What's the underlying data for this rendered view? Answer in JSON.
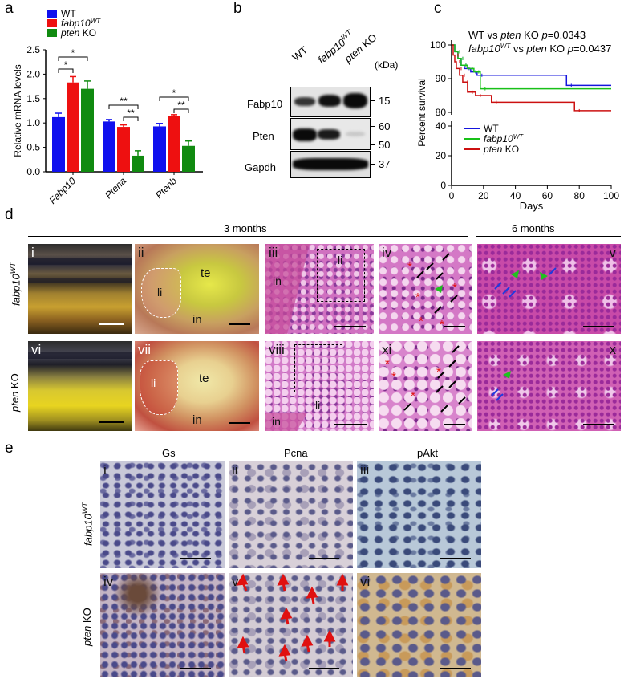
{
  "panel_letters": {
    "a": "a",
    "b": "b",
    "c": "c",
    "d": "d",
    "e": "e"
  },
  "chart_data": [
    {
      "type": "bar",
      "ylabel": "Relative mRNA levels",
      "ylim": [
        0,
        2.5
      ],
      "yticks": [
        "0.0",
        "0.5",
        "1.0",
        "1.5",
        "2.0",
        "2.5"
      ],
      "categories": [
        "Fabp10",
        "Ptena",
        "Ptenb"
      ],
      "series": [
        {
          "name": "WT",
          "color": "#1010ee",
          "values": [
            1.12,
            1.03,
            0.93
          ],
          "errors": [
            0.08,
            0.04,
            0.06
          ]
        },
        {
          "name": "fabp10",
          "name_sup": "WT",
          "color": "#ee1010",
          "values": [
            1.83,
            0.92,
            1.14
          ],
          "errors": [
            0.12,
            0.04,
            0.03
          ]
        },
        {
          "name": "pten KO",
          "color": "#108a10",
          "values": [
            1.7,
            0.33,
            0.53
          ],
          "errors": [
            0.16,
            0.1,
            0.1
          ]
        }
      ],
      "significance": [
        "*",
        "*",
        "**",
        "**",
        "*",
        "**"
      ]
    },
    {
      "type": "line",
      "title_line1": "WT vs pten KO p=0.0343",
      "title_line2": "fabp10WT vs pten KO p=0.0437",
      "xlabel": "Days",
      "ylabel": "Percent survival",
      "xlim": [
        0,
        100
      ],
      "xticks": [
        "0",
        "20",
        "40",
        "60",
        "80",
        "100"
      ],
      "yticks_upper": [
        "80",
        "90",
        "100"
      ],
      "yticks_lower": [
        "0",
        "20",
        "40"
      ],
      "series": [
        {
          "name": "WT",
          "color": "#1515dd",
          "x": [
            0,
            2,
            4,
            6,
            8,
            12,
            16,
            72,
            100
          ],
          "y": [
            100,
            98,
            96,
            94,
            93,
            92,
            91,
            88,
            88
          ]
        },
        {
          "name": "fabp10",
          "name_sup": "WT",
          "color": "#18c018",
          "x": [
            0,
            2,
            4,
            6,
            10,
            14,
            18,
            100
          ],
          "y": [
            100,
            98,
            96,
            94,
            93,
            92,
            87,
            87
          ]
        },
        {
          "name": "pten KO",
          "color": "#cc1010",
          "x": [
            0,
            1,
            2,
            3,
            5,
            7,
            10,
            15,
            25,
            77,
            100
          ],
          "y": [
            100,
            97,
            95,
            93,
            91,
            89,
            86,
            85,
            83,
            80.5,
            80.5
          ]
        }
      ]
    }
  ],
  "western": {
    "lanes": [
      "WT",
      "fabp10",
      "pten KO"
    ],
    "lane2_sup": "WT",
    "kda_label": "(kDa)",
    "rows": [
      {
        "label": "Fabp10",
        "marker": "15"
      },
      {
        "label": "Pten",
        "marker_top": "60",
        "marker_bottom": "50"
      },
      {
        "label": "Gapdh",
        "marker": "37"
      }
    ]
  },
  "panel_d": {
    "header_3m": "3 months",
    "header_6m": "6 months",
    "row1_label": "fabp10",
    "row1_sup": "WT",
    "row2_label": "pten KO",
    "tiles_row1": [
      "i",
      "ii",
      "iii",
      "iv",
      "v"
    ],
    "tiles_row2": [
      "vi",
      "vii",
      "viii",
      "xi",
      "x"
    ],
    "organ_labels": {
      "li": "li",
      "te": "te",
      "in": "in"
    },
    "asterisk": "*"
  },
  "panel_e": {
    "columns": [
      "Gs",
      "Pcna",
      "pAkt"
    ],
    "row1_label": "fabp10",
    "row1_sup": "WT",
    "row2_label": "pten KO",
    "tiles_row1": [
      "i",
      "ii",
      "iii"
    ],
    "tiles_row2": [
      "iv",
      "v",
      "vi"
    ]
  }
}
